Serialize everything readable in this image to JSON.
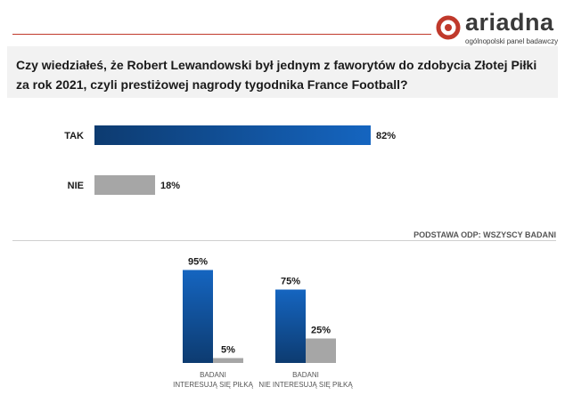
{
  "brand": {
    "name": "ariadna",
    "tagline": "ogólnopolski panel badawczy",
    "accent_color": "#c0392b",
    "icon": "ariadna-logo-icon"
  },
  "question": "Czy wiedziałeś, że Robert Lewandowski był jednym z faworytów do zdobycia Złotej Piłki za rok 2021, czyli prestiżowej nagrody tygodnika France Football?",
  "base_note": "PODSTAWA ODP: WSZYSCY BADANI",
  "colors": {
    "tak": "#1565c0",
    "tak_dark": "#0d3b70",
    "nie": "#a6a6a6"
  },
  "chart_data": [
    {
      "type": "bar",
      "orientation": "horizontal",
      "categories": [
        "TAK",
        "NIE"
      ],
      "values": [
        82,
        18
      ],
      "value_labels": [
        "82%",
        "18%"
      ],
      "xlim": [
        0,
        100
      ]
    },
    {
      "type": "bar",
      "orientation": "vertical",
      "groups": [
        {
          "label_lines": [
            "BADANI",
            "INTERESUJĄ SIĘ PIŁKĄ"
          ]
        },
        {
          "label_lines": [
            "BADANI",
            "NIE INTERESUJĄ SIĘ PIŁKĄ"
          ]
        }
      ],
      "series": [
        {
          "values": [
            95,
            75
          ],
          "value_labels": [
            "95%",
            "75%"
          ]
        },
        {
          "values": [
            5,
            25
          ],
          "value_labels": [
            "5%",
            "25%"
          ]
        }
      ],
      "ylim": [
        0,
        100
      ]
    }
  ]
}
